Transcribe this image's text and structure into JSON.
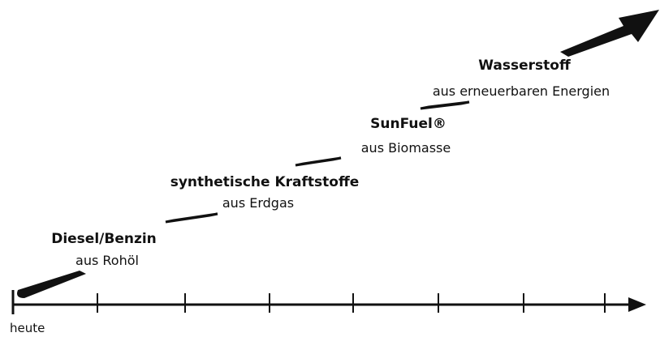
{
  "stages": [
    {
      "title": "Diesel/Benzin",
      "subtitle": "aus Rohöl"
    },
    {
      "title": "synthetische Kraftstoffe",
      "subtitle": "aus Erdgas"
    },
    {
      "title": "SunFuel®",
      "subtitle": "aus Biomasse"
    },
    {
      "title": "Wasserstoff",
      "subtitle": "aus erneuerbaren Energien"
    }
  ],
  "axis": {
    "start_label": "heute"
  }
}
